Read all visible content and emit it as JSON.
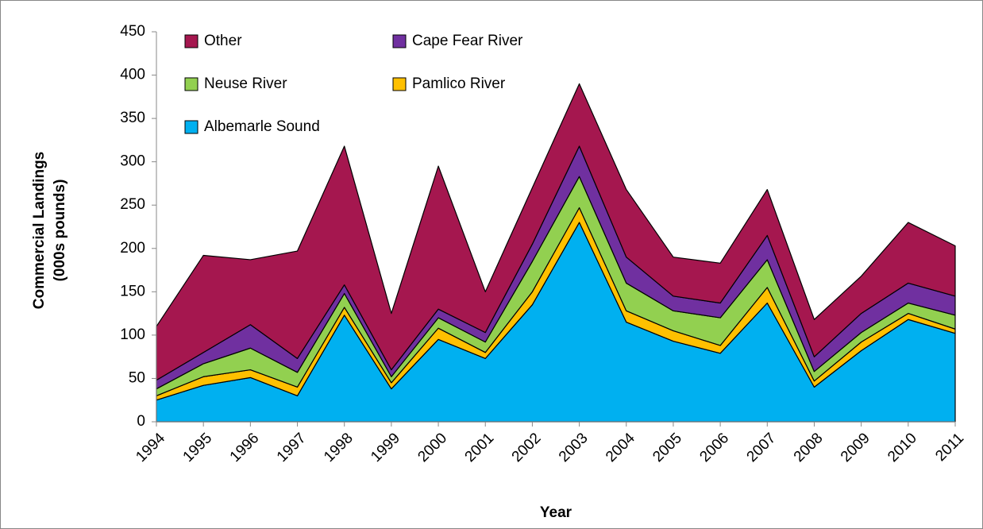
{
  "chart_data": {
    "type": "stacked-area",
    "y_label": [
      "Commercial Landings",
      "(000s pounds)"
    ],
    "x_label": "Year",
    "categories": [
      "1994",
      "1995",
      "1996",
      "1997",
      "1998",
      "1999",
      "2000",
      "2001",
      "2002",
      "2003",
      "2004",
      "2005",
      "2006",
      "2007",
      "2008",
      "2009",
      "2010",
      "2011"
    ],
    "series": [
      {
        "name": "Albemarle Sound",
        "color": "#00b0f0",
        "values": [
          25,
          42,
          51,
          30,
          123,
          38,
          95,
          73,
          135,
          230,
          115,
          93,
          79,
          137,
          40,
          82,
          118,
          102
        ]
      },
      {
        "name": "Pamlico River",
        "color": "#ffc000",
        "values": [
          5,
          10,
          9,
          10,
          9,
          7,
          13,
          7,
          15,
          17,
          13,
          12,
          9,
          18,
          7,
          10,
          7,
          5
        ]
      },
      {
        "name": "Neuse River",
        "color": "#92d050",
        "values": [
          8,
          15,
          25,
          17,
          16,
          7,
          12,
          12,
          35,
          36,
          32,
          23,
          32,
          32,
          11,
          11,
          12,
          16
        ]
      },
      {
        "name": "Cape Fear River",
        "color": "#7030a0",
        "values": [
          10,
          13,
          27,
          16,
          10,
          8,
          10,
          11,
          20,
          35,
          30,
          17,
          17,
          28,
          17,
          22,
          23,
          22
        ]
      },
      {
        "name": "Other",
        "color": "#a5174f",
        "values": [
          62,
          112,
          75,
          124,
          160,
          65,
          165,
          47,
          65,
          72,
          78,
          45,
          46,
          53,
          43,
          43,
          70,
          58
        ]
      }
    ],
    "ylim": [
      0,
      450
    ],
    "yticks": [
      0,
      50,
      100,
      150,
      200,
      250,
      300,
      350,
      400,
      450
    ],
    "legend": "top-left"
  }
}
